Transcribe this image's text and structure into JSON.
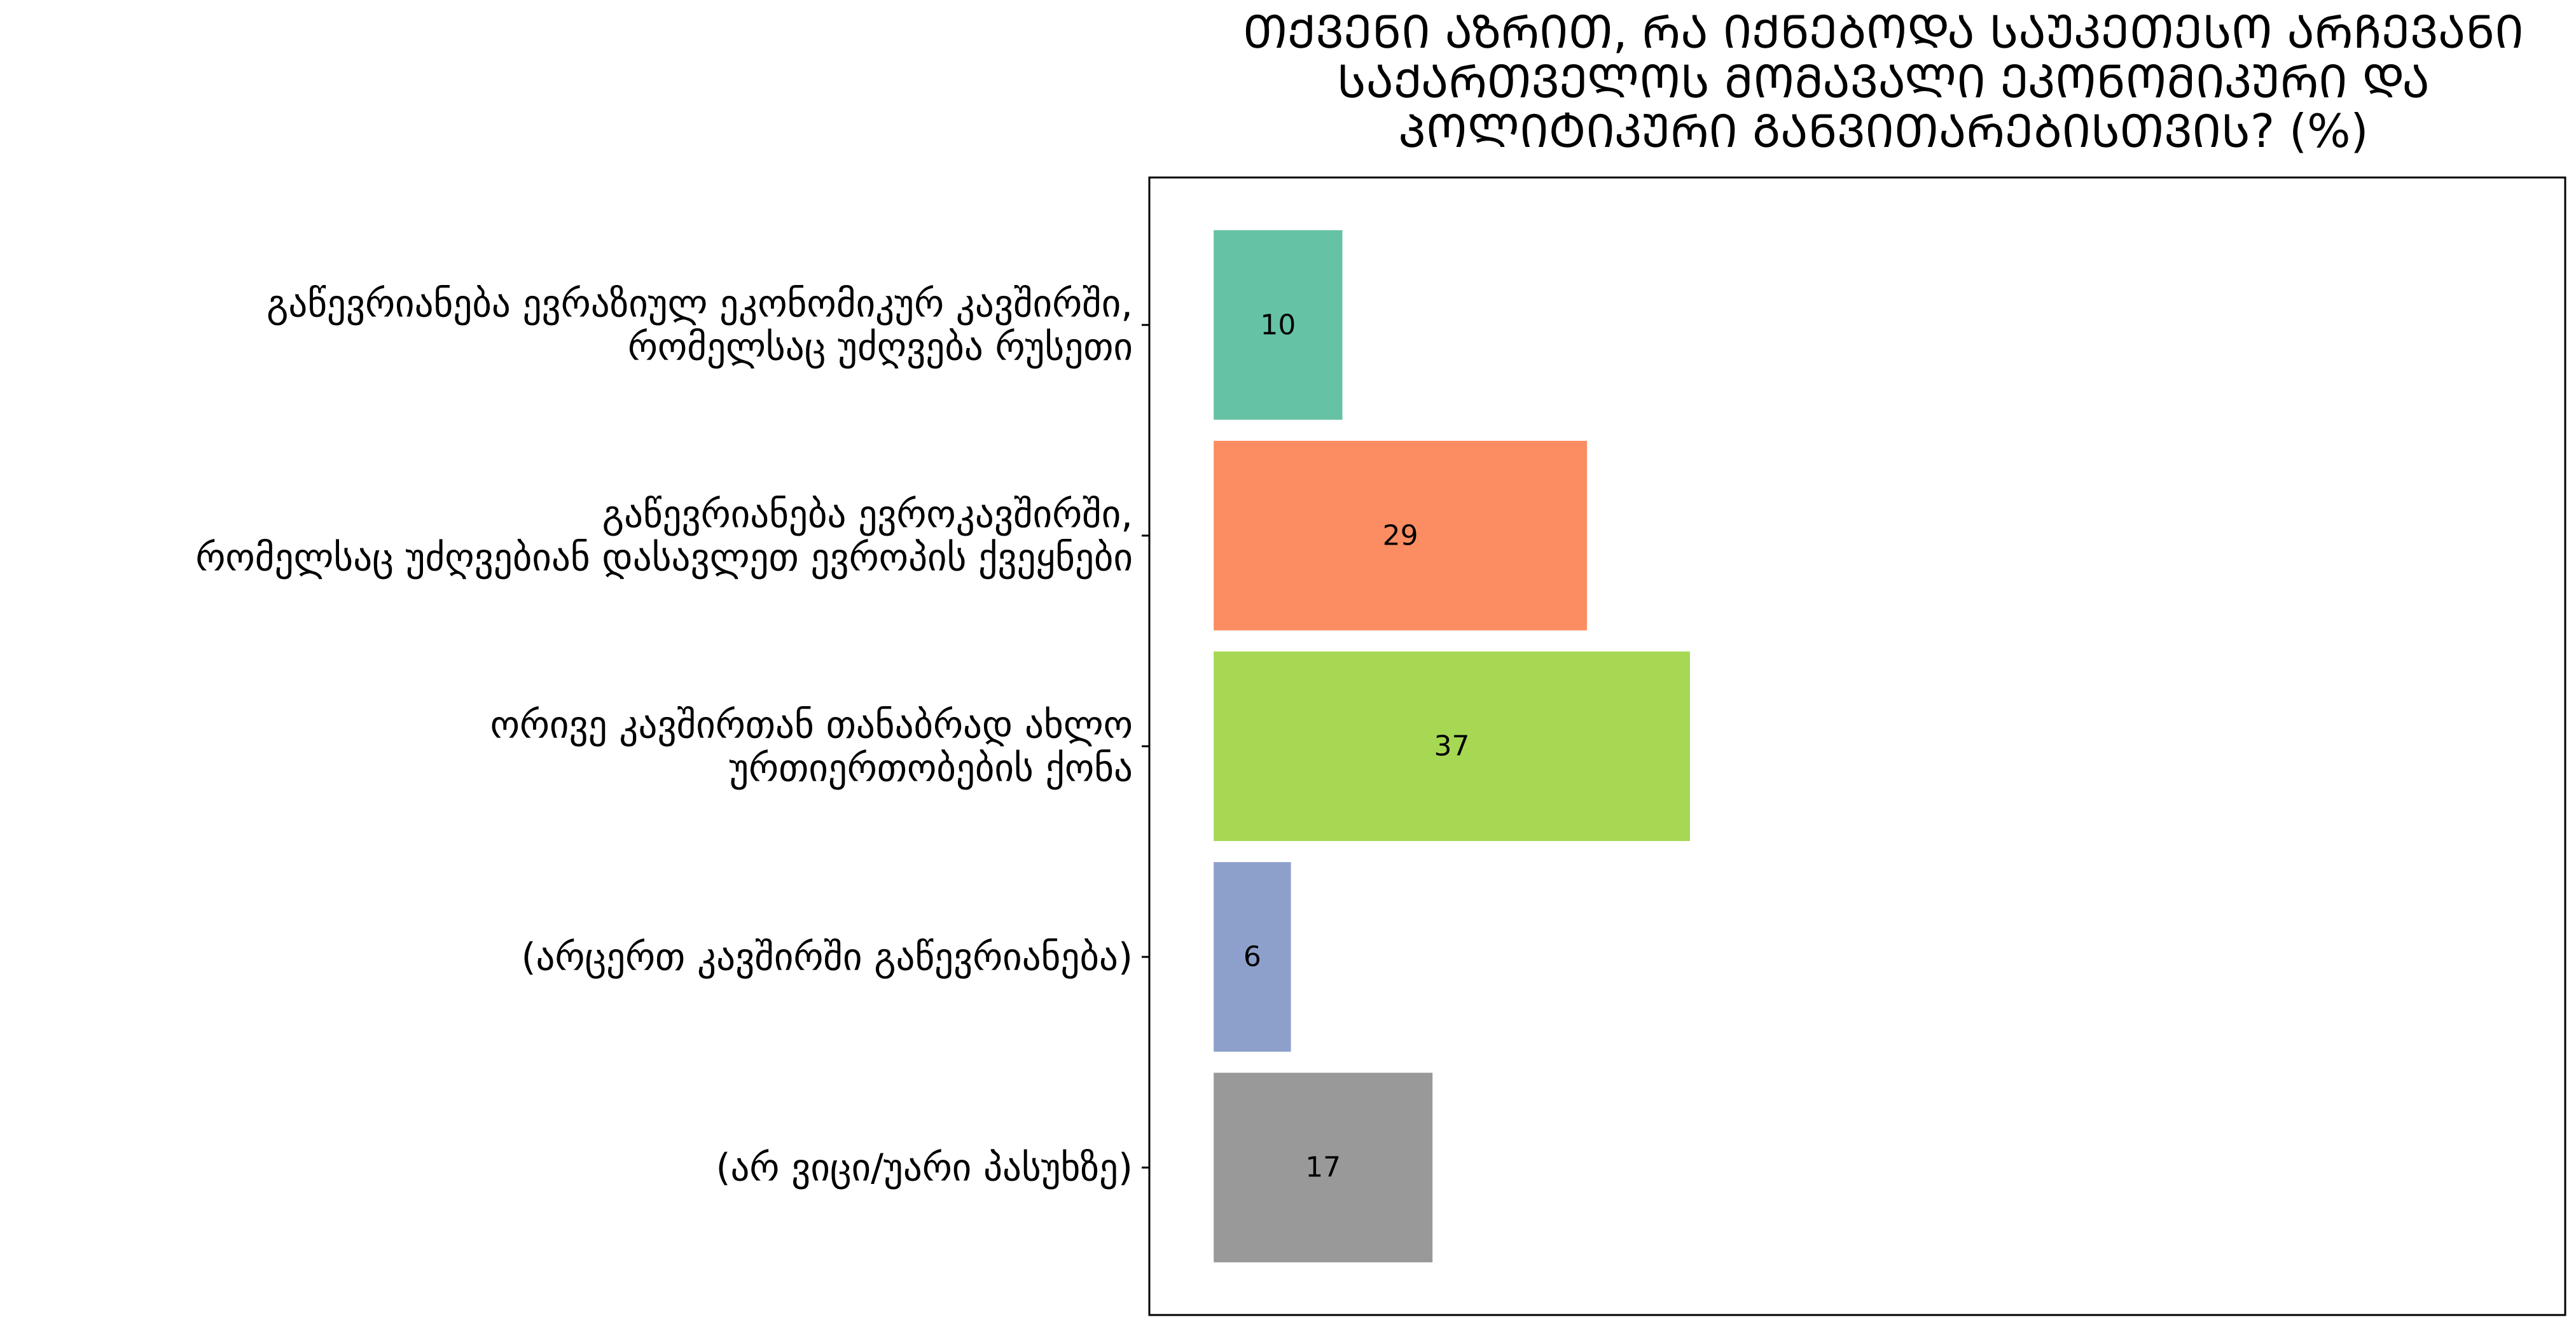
{
  "chart_data": {
    "type": "bar",
    "orientation": "horizontal",
    "title_lines": [
      "ᲗᲥᲕᲔᲜᲘ ᲐᲖᲠᲘᲗ, ᲠᲐ ᲘᲥᲜᲔᲑᲝᲓᲐ ᲡᲐᲣᲙᲔᲗᲔᲡᲝ ᲐᲠᲩᲔᲕᲐᲜᲘ",
      "ᲡᲐᲥᲐᲠᲗᲕᲔᲚᲝᲡ ᲛᲝᲛᲐᲕᲐᲚᲘ ᲔᲙᲝᲜᲝᲛᲘᲙᲣᲠᲘ ᲓᲐ",
      "ᲞᲝᲚᲘᲢᲘᲙᲣᲠᲘ ᲒᲐᲜᲕᲘᲗᲐᲠᲔᲑᲘᲡᲗᲕᲘᲡ? (%)"
    ],
    "categories": [
      [
        "გაწევრიანება ევრაზიულ ეკონომიკურ კავშირში,",
        "რომელსაც უძღვება რუსეთი"
      ],
      [
        "გაწევრიანება ევროკავშირში,",
        "რომელსაც უძღვებიან დასავლეთ ევროპის ქვეყნები"
      ],
      [
        "ორივე კავშირთან თანაბრად ახლო",
        "ურთიერთობების ქონა"
      ],
      [
        "(არცერთ კავშირში გაწევრიანება)"
      ],
      [
        "(არ ვიცი/უარი პასუხზე)"
      ]
    ],
    "values": [
      10,
      29,
      37,
      6,
      17
    ],
    "value_labels": [
      "10",
      "29",
      "37",
      "6",
      "17"
    ],
    "colors": [
      "#66c2a5",
      "#fc8d62",
      "#a6d854",
      "#8da0cb",
      "#999999"
    ],
    "xlim": [
      -5,
      105
    ],
    "x_ticks": "hidden",
    "grid": false,
    "legend": "none"
  }
}
